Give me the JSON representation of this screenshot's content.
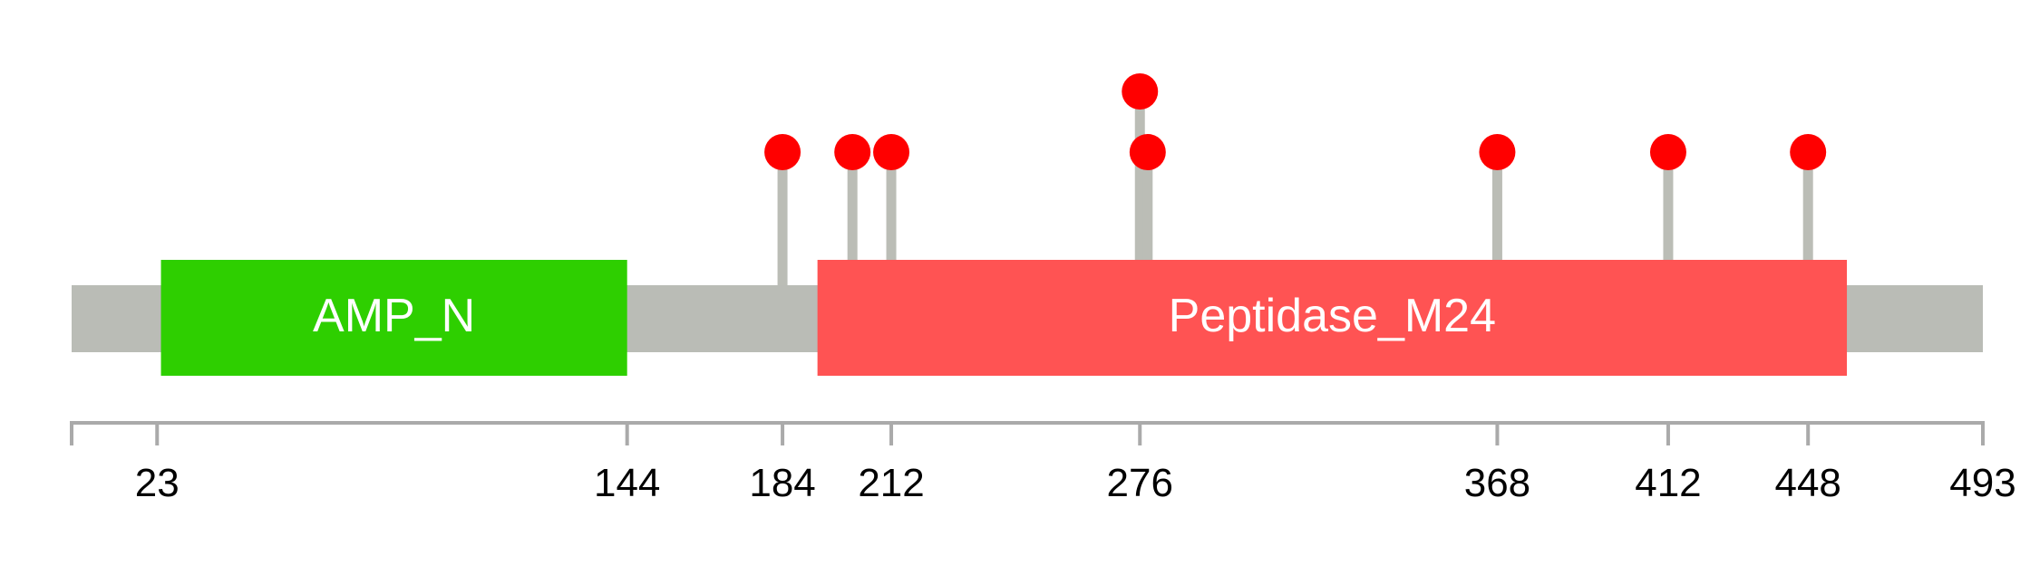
{
  "protein": {
    "length": 493,
    "backbone_color": "#babcb6"
  },
  "domains": [
    {
      "name": "AMP_N",
      "start": 24,
      "end": 144,
      "color": "#2ecf00"
    },
    {
      "name": "Peptidase_M24",
      "start": 193,
      "end": 458,
      "color": "#ff5353"
    }
  ],
  "mutations": [
    {
      "position": 184,
      "level": 1
    },
    {
      "position": 202,
      "level": 1
    },
    {
      "position": 212,
      "level": 1
    },
    {
      "position": 276,
      "level": 2
    },
    {
      "position": 278,
      "level": 1
    },
    {
      "position": 368,
      "level": 1
    },
    {
      "position": 412,
      "level": 1
    },
    {
      "position": 448,
      "level": 1
    }
  ],
  "mutation_color": "#ff0000",
  "stem_color": "#bbbdb6",
  "axis": {
    "color": "#aaaaaa",
    "ticks": [
      1,
      23,
      144,
      184,
      212,
      276,
      368,
      412,
      448,
      493
    ],
    "tick_labels": [
      "",
      "23",
      "144",
      "184",
      "212",
      "276",
      "368",
      "412",
      "448",
      "493"
    ]
  }
}
